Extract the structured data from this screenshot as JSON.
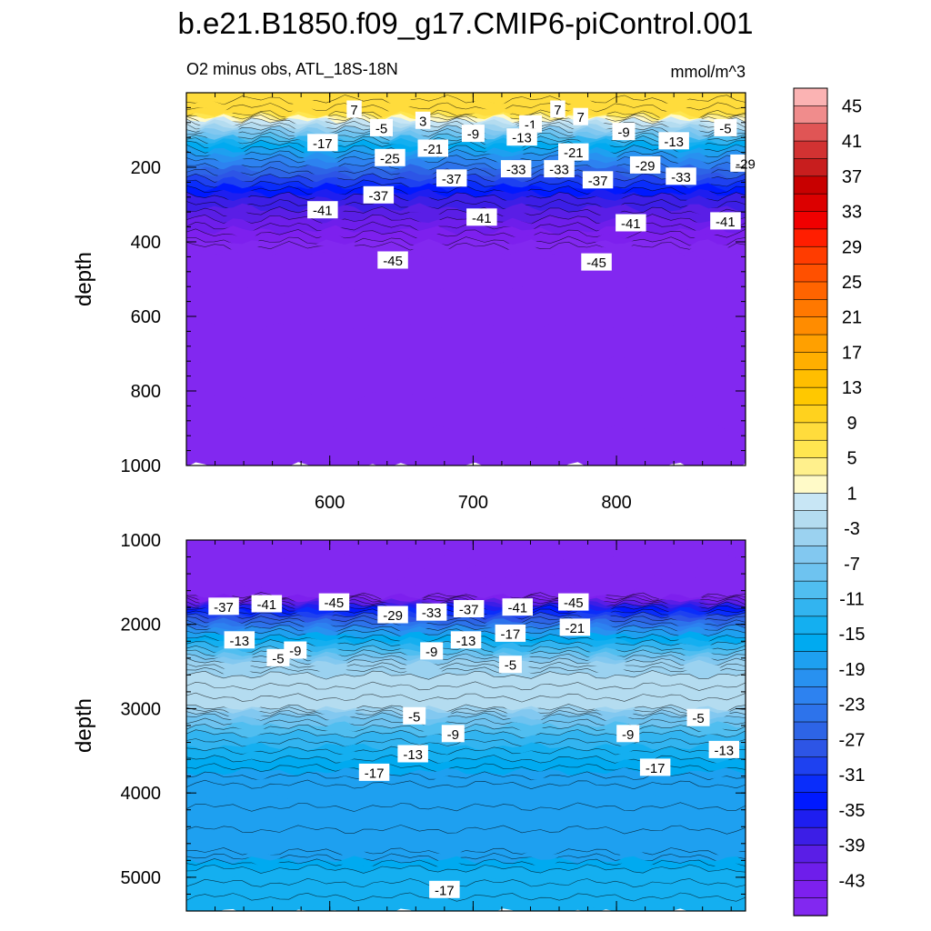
{
  "title": "b.e21.B1850.f09_g17.CMIP6-piControl.001",
  "subtitle": "O2 minus obs, ATL_18S-18N",
  "units": "mmol/m^3",
  "chart_data": {
    "type": "contour",
    "title": "b.e21.B1850.f09_g17.CMIP6-piControl.001",
    "subtitle": "O2 minus obs, ATL_18S-18N",
    "units": "mmol/m^3",
    "x_ticks": [
      600,
      700,
      800
    ],
    "xlim": [
      500,
      890
    ],
    "panels": [
      {
        "name": "upper",
        "ylabel": "depth",
        "ylim": [
          0,
          1000
        ],
        "y_ticks": [
          200,
          400,
          600,
          800,
          1000
        ],
        "bands": [
          {
            "depth": 0,
            "value": 9
          },
          {
            "depth": 60,
            "value": 7
          },
          {
            "depth": 80,
            "value": 0
          },
          {
            "depth": 110,
            "value": -7
          },
          {
            "depth": 140,
            "value": -15
          },
          {
            "depth": 180,
            "value": -21
          },
          {
            "depth": 230,
            "value": -29
          },
          {
            "depth": 280,
            "value": -37
          },
          {
            "depth": 340,
            "value": -41
          },
          {
            "depth": 400,
            "value": -45
          },
          {
            "depth": 440,
            "value": -47
          },
          {
            "depth": 1000,
            "value": -47
          }
        ],
        "contour_labels": [
          {
            "x": 617,
            "y": 45,
            "text": "7"
          },
          {
            "x": 759,
            "y": 45,
            "text": "7"
          },
          {
            "x": 665,
            "y": 75,
            "text": "3"
          },
          {
            "x": 775,
            "y": 65,
            "text": "7"
          },
          {
            "x": 740,
            "y": 85,
            "text": "-1"
          },
          {
            "x": 636,
            "y": 95,
            "text": "-5"
          },
          {
            "x": 876,
            "y": 95,
            "text": "-5"
          },
          {
            "x": 700,
            "y": 110,
            "text": "-9"
          },
          {
            "x": 805,
            "y": 105,
            "text": "-9"
          },
          {
            "x": 595,
            "y": 135,
            "text": "-17"
          },
          {
            "x": 734,
            "y": 120,
            "text": "-13"
          },
          {
            "x": 840,
            "y": 130,
            "text": "-13"
          },
          {
            "x": 672,
            "y": 150,
            "text": "-21"
          },
          {
            "x": 770,
            "y": 160,
            "text": "-21"
          },
          {
            "x": 642,
            "y": 175,
            "text": "-25"
          },
          {
            "x": 890,
            "y": 190,
            "text": "-29"
          },
          {
            "x": 820,
            "y": 195,
            "text": "-29"
          },
          {
            "x": 730,
            "y": 205,
            "text": "-33"
          },
          {
            "x": 760,
            "y": 205,
            "text": "-33"
          },
          {
            "x": 845,
            "y": 225,
            "text": "-33"
          },
          {
            "x": 685,
            "y": 230,
            "text": "-37"
          },
          {
            "x": 787,
            "y": 235,
            "text": "-37"
          },
          {
            "x": 634,
            "y": 275,
            "text": "-37"
          },
          {
            "x": 595,
            "y": 315,
            "text": "-41"
          },
          {
            "x": 706,
            "y": 335,
            "text": "-41"
          },
          {
            "x": 810,
            "y": 350,
            "text": "-41"
          },
          {
            "x": 876,
            "y": 345,
            "text": "-41"
          },
          {
            "x": 644,
            "y": 450,
            "text": "-45"
          },
          {
            "x": 786,
            "y": 455,
            "text": "-45"
          }
        ]
      },
      {
        "name": "lower",
        "ylabel": "depth",
        "ylim": [
          1000,
          5400
        ],
        "y_ticks": [
          1000,
          2000,
          3000,
          4000,
          5000
        ],
        "bands": [
          {
            "depth": 1000,
            "value": -47
          },
          {
            "depth": 1650,
            "value": -47
          },
          {
            "depth": 1720,
            "value": -43
          },
          {
            "depth": 1820,
            "value": -35
          },
          {
            "depth": 1950,
            "value": -27
          },
          {
            "depth": 2100,
            "value": -19
          },
          {
            "depth": 2300,
            "value": -11
          },
          {
            "depth": 2450,
            "value": -5
          },
          {
            "depth": 2600,
            "value": -3
          },
          {
            "depth": 3000,
            "value": -3
          },
          {
            "depth": 3100,
            "value": -7
          },
          {
            "depth": 3300,
            "value": -11
          },
          {
            "depth": 3600,
            "value": -15
          },
          {
            "depth": 3900,
            "value": -19
          },
          {
            "depth": 4700,
            "value": -19
          },
          {
            "depth": 4900,
            "value": -15
          },
          {
            "depth": 5400,
            "value": -15
          }
        ],
        "contour_labels": [
          {
            "x": 526,
            "y": 1790,
            "text": "-37"
          },
          {
            "x": 556,
            "y": 1760,
            "text": "-41"
          },
          {
            "x": 603,
            "y": 1740,
            "text": "-45"
          },
          {
            "x": 644,
            "y": 1890,
            "text": "-29"
          },
          {
            "x": 671,
            "y": 1860,
            "text": "-33"
          },
          {
            "x": 697,
            "y": 1820,
            "text": "-37"
          },
          {
            "x": 731,
            "y": 1800,
            "text": "-41"
          },
          {
            "x": 770,
            "y": 1740,
            "text": "-45"
          },
          {
            "x": 726,
            "y": 2110,
            "text": "-17"
          },
          {
            "x": 771,
            "y": 2040,
            "text": "-21"
          },
          {
            "x": 537,
            "y": 2190,
            "text": "-13"
          },
          {
            "x": 695,
            "y": 2190,
            "text": "-13"
          },
          {
            "x": 576,
            "y": 2310,
            "text": "-9"
          },
          {
            "x": 671,
            "y": 2320,
            "text": "-9"
          },
          {
            "x": 564,
            "y": 2400,
            "text": "-5"
          },
          {
            "x": 726,
            "y": 2480,
            "text": "-5"
          },
          {
            "x": 659,
            "y": 3090,
            "text": "-5"
          },
          {
            "x": 857,
            "y": 3110,
            "text": "-5"
          },
          {
            "x": 686,
            "y": 3300,
            "text": "-9"
          },
          {
            "x": 808,
            "y": 3300,
            "text": "-9"
          },
          {
            "x": 658,
            "y": 3540,
            "text": "-13"
          },
          {
            "x": 875,
            "y": 3490,
            "text": "-13"
          },
          {
            "x": 631,
            "y": 3760,
            "text": "-17"
          },
          {
            "x": 827,
            "y": 3700,
            "text": "-17"
          },
          {
            "x": 680,
            "y": 5150,
            "text": "-17"
          }
        ]
      }
    ],
    "colorbar": {
      "tick_labels": [
        "45",
        "41",
        "37",
        "33",
        "29",
        "25",
        "21",
        "17",
        "13",
        "9",
        "5",
        "1",
        "-3",
        "-7",
        "-11",
        "-15",
        "-19",
        "-23",
        "-27",
        "-31",
        "-35",
        "-39",
        "-43"
      ],
      "levels": [
        47,
        45,
        43,
        41,
        39,
        37,
        35,
        33,
        31,
        29,
        27,
        25,
        23,
        21,
        19,
        17,
        15,
        13,
        11,
        9,
        7,
        5,
        3,
        1,
        -1,
        -3,
        -5,
        -7,
        -9,
        -11,
        -13,
        -15,
        -17,
        -19,
        -21,
        -23,
        -25,
        -27,
        -29,
        -31,
        -33,
        -35,
        -37,
        -39,
        -41,
        -43,
        -45,
        -47
      ],
      "colors": [
        "#fbb3b3",
        "#f08c8c",
        "#e05555",
        "#d23232",
        "#c81e1e",
        "#c80000",
        "#dc0000",
        "#f00000",
        "#ff1e00",
        "#ff3c00",
        "#ff5000",
        "#ff6400",
        "#ff7800",
        "#ff8c00",
        "#ffa000",
        "#ffaf00",
        "#ffbe00",
        "#ffc800",
        "#ffd21e",
        "#ffdc3c",
        "#ffe650",
        "#fff08c",
        "#fffac8",
        "#c8e6f5",
        "#b4dcf0",
        "#9bd2f0",
        "#82c8f0",
        "#6ec3f0",
        "#50bef0",
        "#32b4f0",
        "#14aff0",
        "#00aaf0",
        "#1ea0f0",
        "#2891f0",
        "#2d82f0",
        "#2d73eb",
        "#2d64e6",
        "#2d55e6",
        "#1e41f0",
        "#0a2dfa",
        "#0019ff",
        "#1e1ef0",
        "#3c1ee6",
        "#5a1ee6",
        "#6e1eeb",
        "#7d20ee",
        "#8228f0"
      ]
    }
  }
}
